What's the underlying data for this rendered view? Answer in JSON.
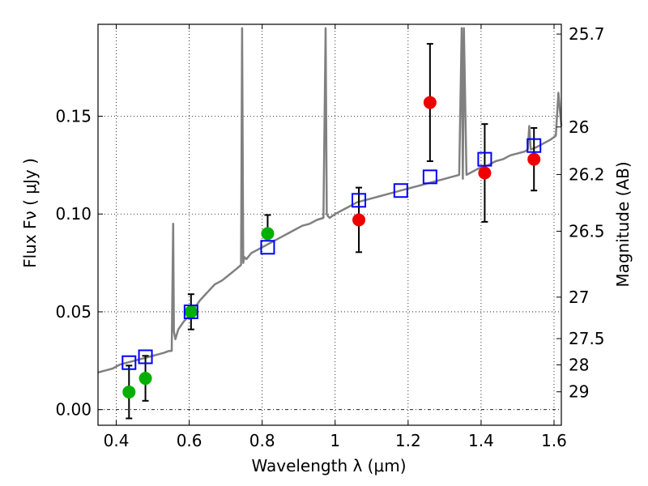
{
  "chart_data": {
    "type": "scatter",
    "title": "",
    "xlabel": "Wavelength  λ (μm)",
    "ylabel": "Flux  Fν  ( μJy )",
    "y2label": "Magnitude (AB)",
    "xlim": [
      0.35,
      1.62
    ],
    "ylim": [
      -0.008,
      0.197
    ],
    "grid": true,
    "x_ticks": [
      {
        "value": 0.4,
        "label": "0.4"
      },
      {
        "value": 0.6,
        "label": "0.6"
      },
      {
        "value": 0.8,
        "label": "0.8"
      },
      {
        "value": 1.0,
        "label": "1"
      },
      {
        "value": 1.2,
        "label": "1.2"
      },
      {
        "value": 1.4,
        "label": "1.4"
      },
      {
        "value": 1.6,
        "label": "1.6"
      }
    ],
    "y_ticks": [
      {
        "value": 0.0,
        "label": "0.00"
      },
      {
        "value": 0.05,
        "label": "0.05"
      },
      {
        "value": 0.1,
        "label": "0.10"
      },
      {
        "value": 0.15,
        "label": "0.15"
      }
    ],
    "y2_ticks": [
      {
        "flux": 0.192,
        "label": "25.7"
      },
      {
        "flux": 0.1445,
        "label": "26"
      },
      {
        "flux": 0.1202,
        "label": "26.2"
      },
      {
        "flux": 0.0912,
        "label": "26.5"
      },
      {
        "flux": 0.0575,
        "label": "27"
      },
      {
        "flux": 0.0363,
        "label": "27.5"
      },
      {
        "flux": 0.0229,
        "label": "28"
      },
      {
        "flux": 0.0091,
        "label": "29"
      }
    ],
    "series": [
      {
        "name": "model-spectrum",
        "kind": "line",
        "color": "#808080",
        "x": [
          0.35,
          0.37,
          0.39,
          0.41,
          0.43,
          0.45,
          0.47,
          0.49,
          0.51,
          0.53,
          0.545,
          0.552,
          0.556,
          0.558,
          0.562,
          0.57,
          0.585,
          0.6,
          0.615,
          0.63,
          0.65,
          0.67,
          0.69,
          0.71,
          0.73,
          0.742,
          0.745,
          0.748,
          0.751,
          0.757,
          0.77,
          0.79,
          0.81,
          0.83,
          0.85,
          0.87,
          0.89,
          0.91,
          0.93,
          0.95,
          0.968,
          0.974,
          0.977,
          0.98,
          0.985,
          1.0,
          1.02,
          1.04,
          1.06,
          1.08,
          1.1,
          1.12,
          1.14,
          1.16,
          1.18,
          1.2,
          1.22,
          1.24,
          1.26,
          1.28,
          1.3,
          1.32,
          1.34,
          1.347,
          1.35,
          1.353,
          1.36,
          1.38,
          1.4,
          1.42,
          1.44,
          1.46,
          1.48,
          1.5,
          1.52,
          1.528,
          1.532,
          1.536,
          1.55,
          1.57,
          1.59,
          1.605,
          1.612,
          1.62
        ],
        "y": [
          0.019,
          0.02,
          0.021,
          0.023,
          0.024,
          0.025,
          0.026,
          0.027,
          0.028,
          0.029,
          0.03,
          0.03,
          0.095,
          0.04,
          0.036,
          0.041,
          0.045,
          0.048,
          0.052,
          0.056,
          0.06,
          0.064,
          0.066,
          0.069,
          0.072,
          0.074,
          0.195,
          0.075,
          0.078,
          0.077,
          0.08,
          0.082,
          0.084,
          0.086,
          0.088,
          0.09,
          0.092,
          0.094,
          0.095,
          0.097,
          0.098,
          0.195,
          0.1,
          0.099,
          0.098,
          0.1,
          0.102,
          0.104,
          0.106,
          0.107,
          0.108,
          0.109,
          0.11,
          0.111,
          0.112,
          0.113,
          0.114,
          0.115,
          0.116,
          0.117,
          0.118,
          0.119,
          0.12,
          0.195,
          0.118,
          0.195,
          0.12,
          0.122,
          0.124,
          0.125,
          0.127,
          0.128,
          0.13,
          0.131,
          0.132,
          0.133,
          0.145,
          0.133,
          0.134,
          0.136,
          0.138,
          0.14,
          0.162,
          0.145
        ]
      },
      {
        "name": "green-measurements",
        "kind": "points",
        "color": "#00b000",
        "x": [
          0.435,
          0.48,
          0.605,
          0.815
        ],
        "y": [
          0.009,
          0.016,
          0.05,
          0.09
        ],
        "yerr_low": [
          0.0135,
          0.0115,
          0.009,
          0.0
        ],
        "yerr_high": [
          0.0135,
          0.0115,
          0.009,
          0.0095
        ]
      },
      {
        "name": "red-measurements",
        "kind": "points",
        "color": "#ee0000",
        "x": [
          1.065,
          1.26,
          1.41,
          1.545
        ],
        "y": [
          0.097,
          0.157,
          0.121,
          0.128
        ],
        "yerr_low": [
          0.0165,
          0.03,
          0.025,
          0.016
        ],
        "yerr_high": [
          0.0165,
          0.03,
          0.025,
          0.016
        ]
      },
      {
        "name": "model-photometry",
        "kind": "squares",
        "color": "#0000ff",
        "x": [
          0.435,
          0.48,
          0.605,
          0.815,
          1.065,
          1.18,
          1.26,
          1.41,
          1.545
        ],
        "y": [
          0.024,
          0.027,
          0.05,
          0.083,
          0.107,
          0.112,
          0.119,
          0.128,
          0.135
        ]
      }
    ]
  }
}
